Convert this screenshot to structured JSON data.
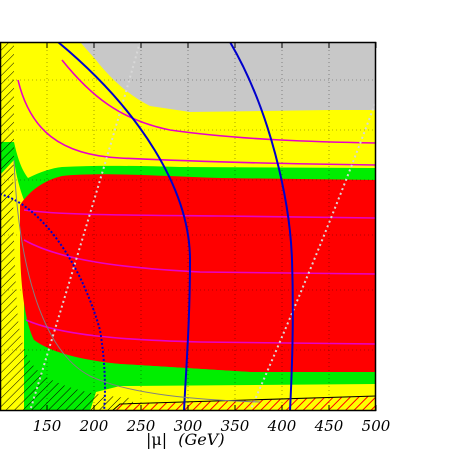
{
  "chart_data": {
    "type": "area",
    "x_axis": {
      "label": "|μ|",
      "unit": "(GeV)",
      "ticks": [
        150,
        200,
        250,
        300,
        350,
        400,
        450,
        500
      ],
      "range": [
        100,
        500
      ]
    },
    "colors": {
      "grey": "#c8c8c8",
      "yellow": "#ffff00",
      "green": "#00ee00",
      "red": "#ff0000",
      "blue": "#0000cc",
      "magenta": "#e800c8",
      "light_grey_dotted": "#d8d8d8",
      "frame": "#000000"
    },
    "regions": [
      "grey",
      "yellow",
      "green",
      "red",
      "hatched"
    ],
    "contours": [
      {
        "kind": "blue",
        "x_at_bottom": 300
      },
      {
        "kind": "blue",
        "x_at_bottom": 410
      },
      {
        "kind": "blue",
        "x_at_bottom": 200
      },
      {
        "kind": "magenta"
      },
      {
        "kind": "grey-dotted"
      }
    ]
  }
}
